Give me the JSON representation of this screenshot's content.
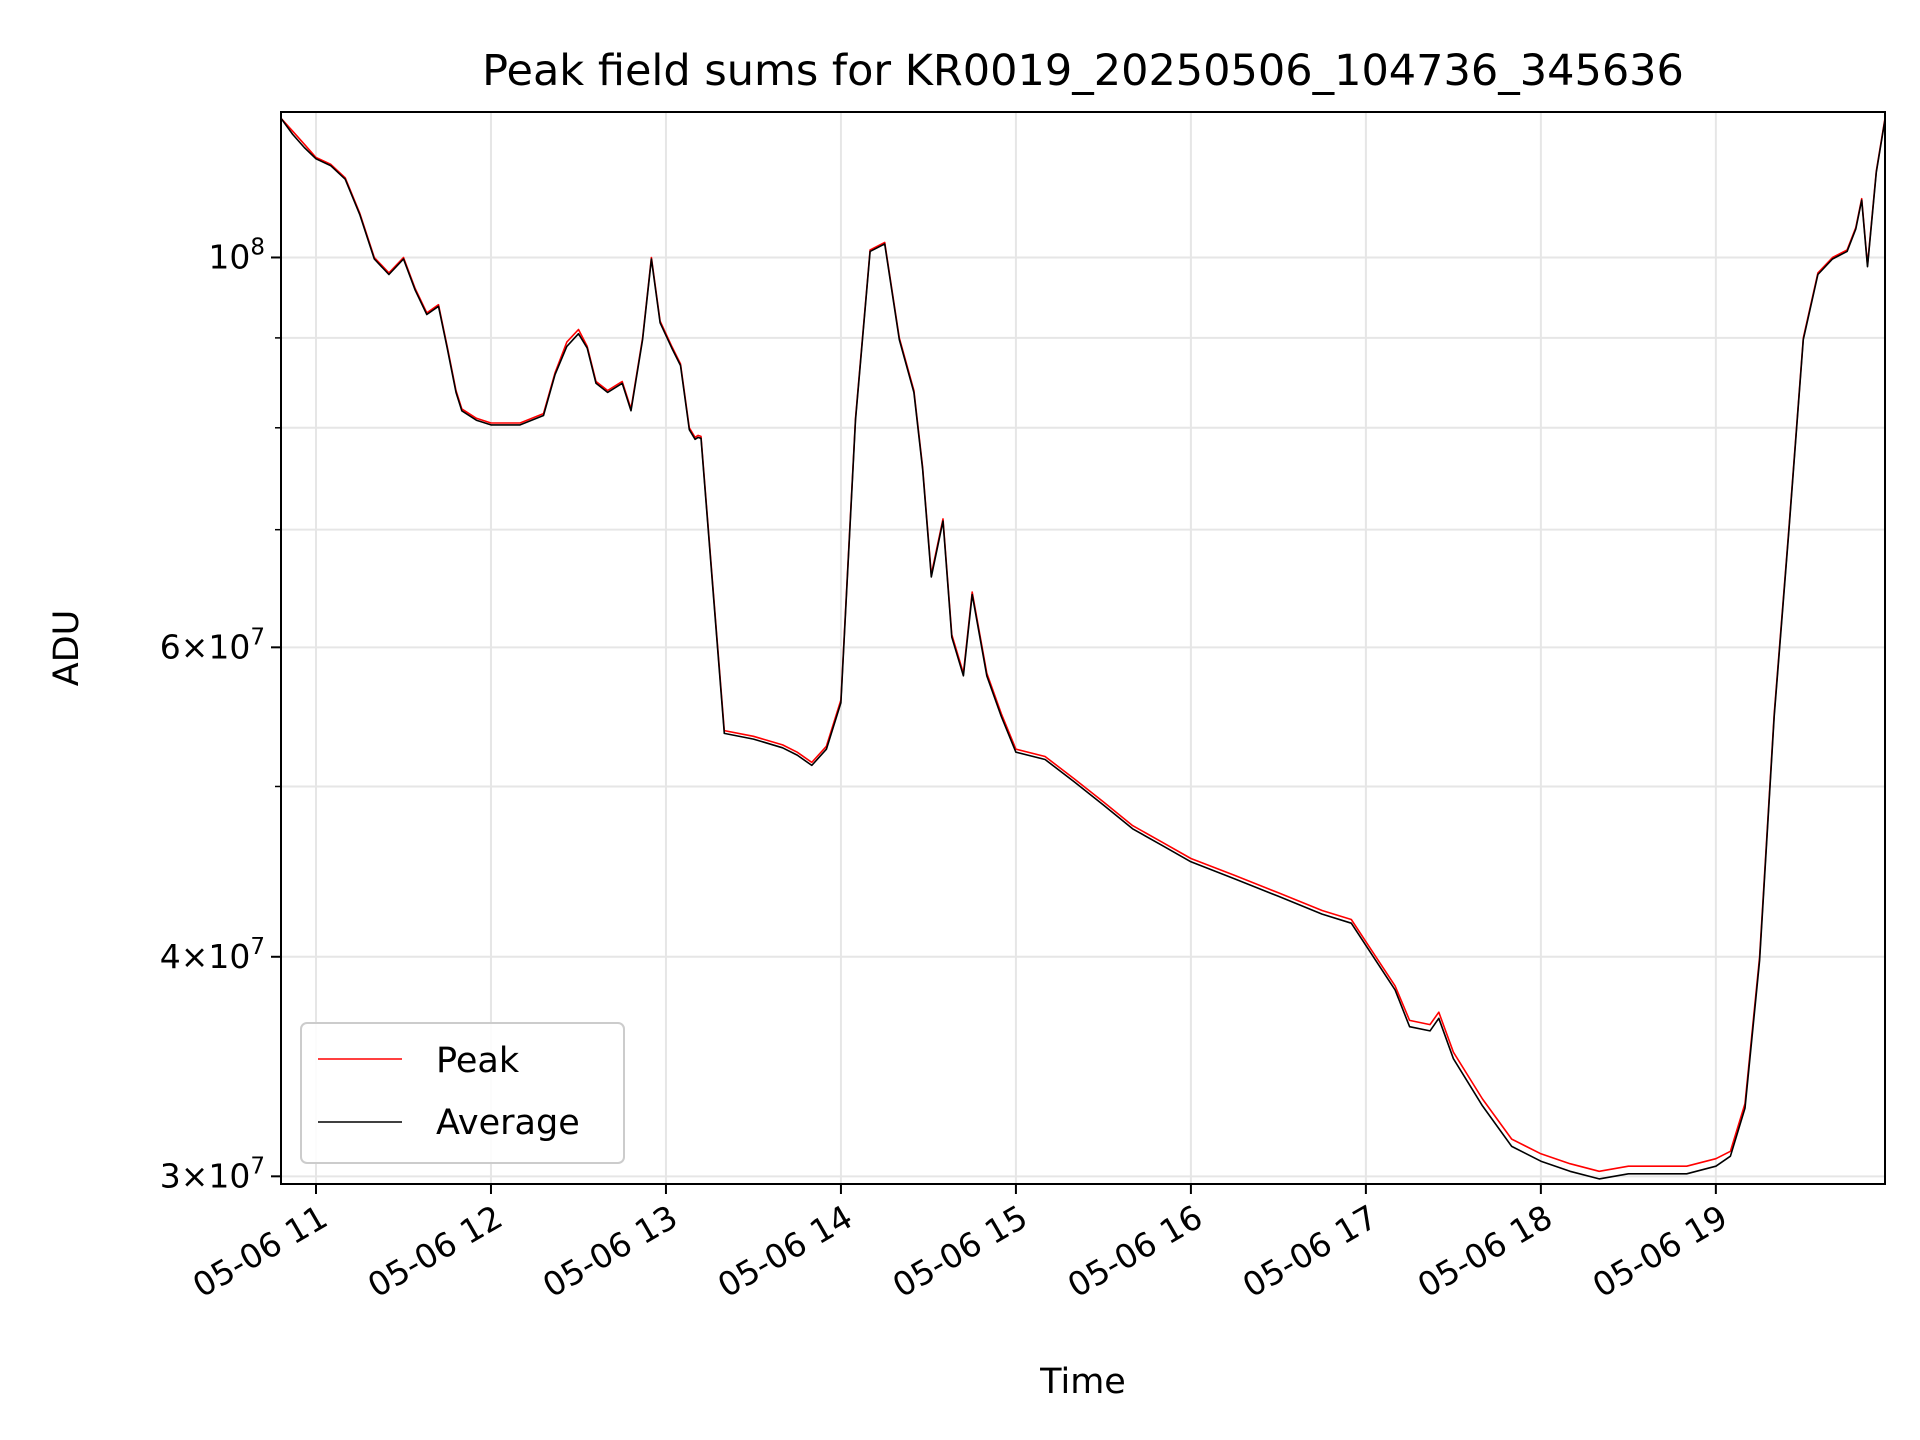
{
  "chart_data": {
    "type": "line",
    "title": "Peak field sums for KR0019_20250506_104736_345636",
    "xlabel": "Time",
    "ylabel": "ADU",
    "yscale": "log",
    "xlim": [
      "05-06 10:48",
      "05-06 19:58"
    ],
    "ylim": [
      29700000,
      121000000
    ],
    "grid": true,
    "legend_position": "lower-left",
    "x_ticks": [
      "05-06 11",
      "05-06 12",
      "05-06 13",
      "05-06 14",
      "05-06 15",
      "05-06 16",
      "05-06 17",
      "05-06 18",
      "05-06 19"
    ],
    "x_tick_hours": [
      11,
      12,
      13,
      14,
      15,
      16,
      17,
      18,
      19
    ],
    "y_major_ticks": [
      {
        "value": 30000000,
        "mantissa": "3",
        "exponent": "7"
      },
      {
        "value": 40000000,
        "mantissa": "4",
        "exponent": "7"
      },
      {
        "value": 60000000,
        "mantissa": "6",
        "exponent": "7"
      },
      {
        "value": 100000000,
        "mantissa": "",
        "exponent": "8"
      }
    ],
    "y_minor_ticks": [
      50000000,
      70000000,
      80000000,
      90000000
    ],
    "series": [
      {
        "name": "Peak",
        "color": "#ff0000",
        "x": [
          "05-06 10:48",
          "05-06 10:52",
          "05-06 10:56",
          "05-06 11:00",
          "05-06 11:05",
          "05-06 11:10",
          "05-06 11:15",
          "05-06 11:20",
          "05-06 11:25",
          "05-06 11:30",
          "05-06 11:34",
          "05-06 11:38",
          "05-06 11:42",
          "05-06 11:45",
          "05-06 11:48",
          "05-06 11:50",
          "05-06 11:55",
          "05-06 12:00",
          "05-06 12:10",
          "05-06 12:18",
          "05-06 12:22",
          "05-06 12:26",
          "05-06 12:30",
          "05-06 12:33",
          "05-06 12:36",
          "05-06 12:40",
          "05-06 12:45",
          "05-06 12:48",
          "05-06 12:52",
          "05-06 12:55",
          "05-06 12:58",
          "05-06 13:02",
          "05-06 13:05",
          "05-06 13:08",
          "05-06 13:10",
          "05-06 13:11",
          "05-06 13:12",
          "05-06 13:20",
          "05-06 13:30",
          "05-06 13:40",
          "05-06 13:45",
          "05-06 13:50",
          "05-06 13:55",
          "05-06 14:00",
          "05-06 14:05",
          "05-06 14:10",
          "05-06 14:15",
          "05-06 14:20",
          "05-06 14:25",
          "05-06 14:28",
          "05-06 14:31",
          "05-06 14:35",
          "05-06 14:38",
          "05-06 14:42",
          "05-06 14:45",
          "05-06 14:50",
          "05-06 14:55",
          "05-06 15:00",
          "05-06 15:10",
          "05-06 15:20",
          "05-06 15:30",
          "05-06 15:40",
          "05-06 15:50",
          "05-06 16:00",
          "05-06 16:15",
          "05-06 16:30",
          "05-06 16:45",
          "05-06 16:55",
          "05-06 17:00",
          "05-06 17:10",
          "05-06 17:15",
          "05-06 17:22",
          "05-06 17:25",
          "05-06 17:30",
          "05-06 17:40",
          "05-06 17:50",
          "05-06 18:00",
          "05-06 18:10",
          "05-06 18:20",
          "05-06 18:30",
          "05-06 18:40",
          "05-06 18:50",
          "05-06 19:00",
          "05-06 19:05",
          "05-06 19:10",
          "05-06 19:15",
          "05-06 19:20",
          "05-06 19:25",
          "05-06 19:30",
          "05-06 19:35",
          "05-06 19:40",
          "05-06 19:45",
          "05-06 19:48",
          "05-06 19:50",
          "05-06 19:52",
          "05-06 19:55",
          "05-06 19:58"
        ],
        "y": [
          120000000,
          118000000,
          116000000,
          114000000,
          113000000,
          111000000,
          106000000,
          100000000,
          98000000,
          100000000,
          96000000,
          93000000,
          94000000,
          89000000,
          84000000,
          82000000,
          81000000,
          80500000,
          80500000,
          81500000,
          86000000,
          89500000,
          91000000,
          89000000,
          85000000,
          84000000,
          85000000,
          82000000,
          90000000,
          100000000,
          92000000,
          89000000,
          87000000,
          80000000,
          79000000,
          79200000,
          79100000,
          53800000,
          53400000,
          52800000,
          52300000,
          51600000,
          52700000,
          56000000,
          81000000,
          101000000,
          102000000,
          90000000,
          84000000,
          76000000,
          66000000,
          71000000,
          61000000,
          58000000,
          64500000,
          58000000,
          55000000,
          52500000,
          52000000,
          50500000,
          49000000,
          47500000,
          46500000,
          45500000,
          44500000,
          43500000,
          42500000,
          42000000,
          40800000,
          38500000,
          36800000,
          36600000,
          37200000,
          35300000,
          33200000,
          31500000,
          30900000,
          30500000,
          30200000,
          30400000,
          30400000,
          30400000,
          30700000,
          31000000,
          33000000,
          40000000,
          55000000,
          70000000,
          90000000,
          98000000,
          100000000,
          101000000,
          104000000,
          108000000,
          99000000,
          112000000,
          120000000
        ]
      },
      {
        "name": "Average",
        "color": "#000000",
        "x": [
          "05-06 10:48",
          "05-06 10:52",
          "05-06 10:56",
          "05-06 11:00",
          "05-06 11:05",
          "05-06 11:10",
          "05-06 11:15",
          "05-06 11:20",
          "05-06 11:25",
          "05-06 11:30",
          "05-06 11:34",
          "05-06 11:38",
          "05-06 11:42",
          "05-06 11:45",
          "05-06 11:48",
          "05-06 11:50",
          "05-06 11:55",
          "05-06 12:00",
          "05-06 12:10",
          "05-06 12:18",
          "05-06 12:22",
          "05-06 12:26",
          "05-06 12:30",
          "05-06 12:33",
          "05-06 12:36",
          "05-06 12:40",
          "05-06 12:45",
          "05-06 12:48",
          "05-06 12:52",
          "05-06 12:55",
          "05-06 12:58",
          "05-06 13:02",
          "05-06 13:05",
          "05-06 13:08",
          "05-06 13:10",
          "05-06 13:11",
          "05-06 13:12",
          "05-06 13:20",
          "05-06 13:30",
          "05-06 13:40",
          "05-06 13:45",
          "05-06 13:50",
          "05-06 13:55",
          "05-06 14:00",
          "05-06 14:05",
          "05-06 14:10",
          "05-06 14:15",
          "05-06 14:20",
          "05-06 14:25",
          "05-06 14:28",
          "05-06 14:31",
          "05-06 14:35",
          "05-06 14:38",
          "05-06 14:42",
          "05-06 14:45",
          "05-06 14:50",
          "05-06 14:55",
          "05-06 15:00",
          "05-06 15:10",
          "05-06 15:20",
          "05-06 15:30",
          "05-06 15:40",
          "05-06 15:50",
          "05-06 16:00",
          "05-06 16:15",
          "05-06 16:30",
          "05-06 16:45",
          "05-06 16:55",
          "05-06 17:00",
          "05-06 17:10",
          "05-06 17:15",
          "05-06 17:22",
          "05-06 17:25",
          "05-06 17:30",
          "05-06 17:40",
          "05-06 17:50",
          "05-06 18:00",
          "05-06 18:10",
          "05-06 18:20",
          "05-06 18:30",
          "05-06 18:40",
          "05-06 18:50",
          "05-06 19:00",
          "05-06 19:05",
          "05-06 19:10",
          "05-06 19:15",
          "05-06 19:20",
          "05-06 19:25",
          "05-06 19:30",
          "05-06 19:35",
          "05-06 19:40",
          "05-06 19:45",
          "05-06 19:48",
          "05-06 19:50",
          "05-06 19:52",
          "05-06 19:55",
          "05-06 19:58"
        ],
        "y": [
          120000000,
          117500000,
          115500000,
          113800000,
          112800000,
          110800000,
          105800000,
          99800000,
          97800000,
          99800000,
          95800000,
          92800000,
          93800000,
          88800000,
          83800000,
          81800000,
          80800000,
          80300000,
          80300000,
          81300000,
          85800000,
          89000000,
          90500000,
          88800000,
          84800000,
          83800000,
          84800000,
          81800000,
          89800000,
          99800000,
          91800000,
          88800000,
          86800000,
          79800000,
          78800000,
          79000000,
          78900000,
          53600000,
          53200000,
          52600000,
          52100000,
          51400000,
          52500000,
          55800000,
          80800000,
          100800000,
          101800000,
          89800000,
          83800000,
          75800000,
          65800000,
          70800000,
          60800000,
          57800000,
          64300000,
          57800000,
          54800000,
          52300000,
          51800000,
          50300000,
          48800000,
          47300000,
          46300000,
          45300000,
          44300000,
          43300000,
          42300000,
          41800000,
          40600000,
          38300000,
          36500000,
          36300000,
          36900000,
          35000000,
          32900000,
          31200000,
          30600000,
          30200000,
          29900000,
          30100000,
          30100000,
          30100000,
          30400000,
          30800000,
          32800000,
          39800000,
          54800000,
          69800000,
          89800000,
          97800000,
          99800000,
          100800000,
          103800000,
          107800000,
          98800000,
          111800000,
          119800000
        ]
      }
    ]
  }
}
